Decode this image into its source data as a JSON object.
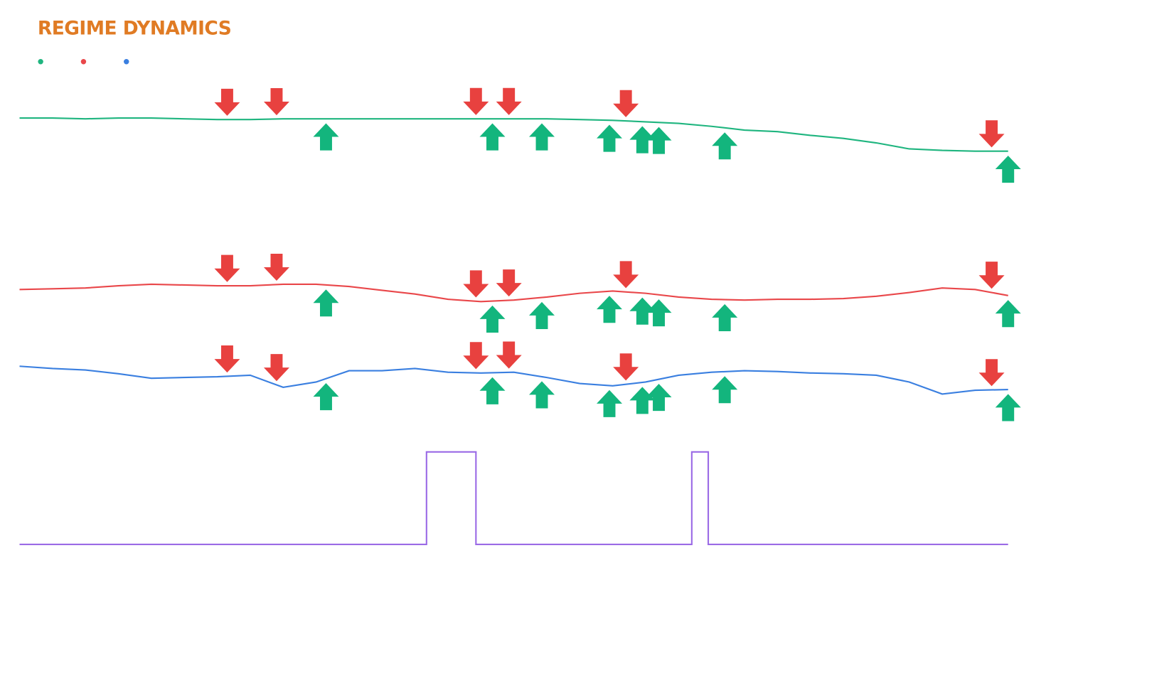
{
  "chart_data": {
    "type": "line",
    "title": "REGIME DYNAMICS",
    "x": [
      0,
      2,
      4,
      6,
      8,
      10,
      12,
      14,
      16,
      18,
      20,
      22,
      24,
      26,
      28,
      30,
      32,
      34,
      36,
      38,
      40,
      42,
      44,
      46,
      48,
      50,
      52,
      54,
      56,
      58,
      60
    ],
    "xlim": [
      0,
      60
    ],
    "series": [
      {
        "color": "#1fb57f",
        "ylim": [
          0,
          100
        ],
        "values": [
          103,
          103,
          102,
          103,
          103,
          102,
          101,
          101,
          102,
          102,
          102,
          102,
          102,
          102,
          102,
          102,
          102,
          101,
          100,
          98,
          96,
          92,
          87,
          85,
          80,
          76,
          70,
          62,
          60,
          59,
          59
        ]
      },
      {
        "color": "#e9474a",
        "ylim": [
          0,
          100
        ],
        "values": [
          65,
          66,
          67,
          70,
          72,
          71,
          70,
          70,
          72,
          72,
          69,
          64,
          59,
          52,
          49,
          51,
          55,
          60,
          63,
          60,
          55,
          52,
          51,
          52,
          52,
          53,
          56,
          61,
          67,
          65,
          57
        ]
      },
      {
        "color": "#3a7fe0",
        "ylim": [
          0,
          100
        ],
        "values": [
          63,
          60,
          58,
          53,
          47,
          48,
          49,
          51,
          35,
          42,
          57,
          57,
          60,
          55,
          54,
          55,
          48,
          40,
          37,
          42,
          51,
          55,
          57,
          56,
          54,
          53,
          51,
          42,
          26,
          31,
          32
        ]
      },
      {
        "color": "#9b6be6",
        "ylim": [
          0,
          1
        ],
        "step": true,
        "x": [
          0,
          24.7,
          27.7,
          40.8,
          41.8,
          60
        ],
        "values": [
          0,
          1,
          0,
          1,
          0,
          0
        ]
      }
    ],
    "signals": {
      "sell": {
        "color": "#e8413f",
        "x": [
          12.6,
          15.6,
          27.7,
          29.7,
          36.8,
          59
        ]
      },
      "buy": {
        "color": "#13b57d",
        "x": [
          18.6,
          28.7,
          31.7,
          35.8,
          37.8,
          38.8,
          42.8,
          60
        ]
      }
    }
  }
}
